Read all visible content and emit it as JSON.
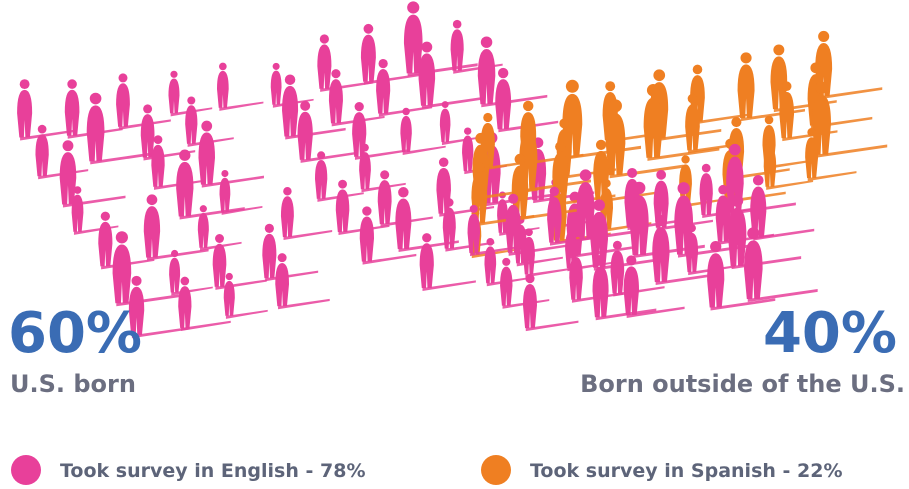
{
  "groups": [
    {
      "percent": "60%",
      "label": "U.S. born"
    },
    {
      "percent": "40%",
      "label": "Born outside of the U.S."
    }
  ],
  "legend": [
    {
      "label": "Took survey in English - 78%",
      "color": "#e8409a"
    },
    {
      "label": "Took survey in Spanish - 22%",
      "color": "#ef7f22"
    }
  ]
}
